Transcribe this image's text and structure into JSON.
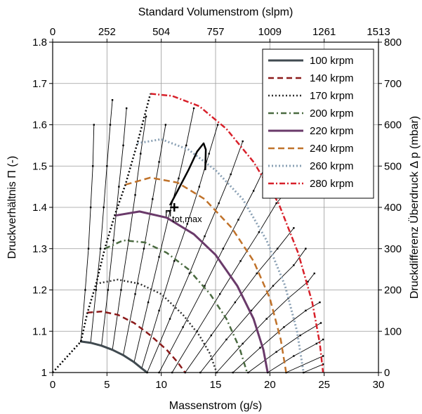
{
  "chart_data": {
    "type": "line",
    "xlabel": "Massenstrom (g/s)",
    "ylabel": "Druckverhältnis Π (-)",
    "x2label": "Standard Volumenstrom (slpm)",
    "y2label": "Druckdifferenz Überdruck Δ p (mbar)",
    "xlim": [
      0,
      30
    ],
    "ylim": [
      1.0,
      1.8
    ],
    "x_ticks": [
      "0",
      "5",
      "10",
      "15",
      "20",
      "25",
      "30"
    ],
    "y_ticks": [
      "1",
      "1.1",
      "1.2",
      "1.3",
      "1.4",
      "1.5",
      "1.6",
      "1.7",
      "1.8"
    ],
    "x2_ticks": [
      "0",
      "252",
      "504",
      "757",
      "1009",
      "1261",
      "1513"
    ],
    "y2_ticks": [
      "0",
      "100",
      "200",
      "300",
      "400",
      "500",
      "600",
      "700",
      "800"
    ],
    "grid": true,
    "legend_position": "top-right",
    "annotation": {
      "text_main": "Π",
      "text_sub": "tot,max",
      "x": 11.2,
      "y": 1.4
    },
    "series": [
      {
        "name": "100 krpm",
        "color": "#404a50",
        "dash": "solid",
        "width": 3,
        "x": [
          2.6,
          3.5,
          4.5,
          5.5,
          6.5,
          7.5,
          8.2,
          8.7
        ],
        "y": [
          1.075,
          1.072,
          1.065,
          1.055,
          1.042,
          1.025,
          1.01,
          1.0
        ]
      },
      {
        "name": "140 krpm",
        "color": "#8b1a1a",
        "dash": "8,5",
        "width": 2.5,
        "x": [
          3.2,
          4.5,
          6.0,
          7.5,
          9.0,
          10.5,
          11.5,
          12.2
        ],
        "y": [
          1.145,
          1.148,
          1.14,
          1.12,
          1.09,
          1.055,
          1.025,
          1.0
        ]
      },
      {
        "name": "170 krpm",
        "color": "#303030",
        "dash": "2,3",
        "width": 2.5,
        "x": [
          4.0,
          6.0,
          8.0,
          10.0,
          12.0,
          13.5,
          14.5,
          15.1
        ],
        "y": [
          1.215,
          1.225,
          1.215,
          1.19,
          1.14,
          1.09,
          1.045,
          1.0
        ]
      },
      {
        "name": "200 krpm",
        "color": "#4a6a40",
        "dash": "8,4,2,4",
        "width": 2.5,
        "x": [
          4.8,
          6.5,
          8.5,
          10.5,
          12.5,
          14.5,
          16.0,
          17.2,
          17.9
        ],
        "y": [
          1.3,
          1.32,
          1.315,
          1.29,
          1.25,
          1.19,
          1.13,
          1.06,
          1.0
        ]
      },
      {
        "name": "220 krpm",
        "color": "#6a3a6a",
        "dash": "solid",
        "width": 3,
        "x": [
          5.7,
          8.0,
          10.5,
          13.0,
          15.0,
          17.0,
          18.5,
          19.4,
          19.8
        ],
        "y": [
          1.38,
          1.39,
          1.375,
          1.335,
          1.285,
          1.21,
          1.13,
          1.055,
          1.0
        ]
      },
      {
        "name": "240 krpm",
        "color": "#c0722a",
        "dash": "9,5",
        "width": 2.5,
        "x": [
          6.7,
          9.0,
          11.5,
          14.0,
          16.5,
          18.5,
          20.0,
          21.0,
          21.5
        ],
        "y": [
          1.455,
          1.472,
          1.46,
          1.42,
          1.35,
          1.27,
          1.18,
          1.08,
          1.0
        ]
      },
      {
        "name": "260 krpm",
        "color": "#8aa0b4",
        "dash": "2,3",
        "width": 3,
        "x": [
          7.8,
          10.0,
          12.5,
          15.0,
          17.5,
          19.7,
          21.4,
          22.5,
          23.1
        ],
        "y": [
          1.555,
          1.565,
          1.54,
          1.49,
          1.42,
          1.32,
          1.21,
          1.1,
          1.0
        ]
      },
      {
        "name": "280 krpm",
        "color": "#d8202a",
        "dash": "8,3,2,3",
        "width": 2.5,
        "x": [
          9.0,
          11.0,
          13.5,
          16.0,
          18.5,
          20.8,
          22.6,
          23.9,
          24.6,
          24.9
        ],
        "y": [
          1.675,
          1.67,
          1.645,
          1.59,
          1.51,
          1.41,
          1.29,
          1.17,
          1.07,
          1.0
        ]
      },
      {
        "name": "",
        "color": "#000000",
        "dash": "2,3",
        "width": 2.5,
        "x": [
          0,
          2.6,
          3.2,
          4.0,
          4.8,
          5.7,
          6.7,
          7.8,
          9.0
        ],
        "y": [
          1.0,
          1.075,
          1.145,
          1.215,
          1.3,
          1.38,
          1.455,
          1.555,
          1.675
        ]
      },
      {
        "name": "",
        "color": "#000000",
        "dash": "solid",
        "width": 2.5,
        "x": [
          10.8,
          11.5,
          12.5,
          13.3,
          13.9,
          14.1,
          14.05
        ],
        "y": [
          1.405,
          1.44,
          1.49,
          1.535,
          1.555,
          1.54,
          1.49
        ]
      }
    ],
    "speed_lines": [
      [
        [
          2.6,
          1.075
        ],
        [
          3.0,
          1.2
        ],
        [
          3.3,
          1.3
        ],
        [
          3.5,
          1.4
        ],
        [
          3.7,
          1.5
        ],
        [
          3.8,
          1.6
        ]
      ],
      [
        [
          3.5,
          1.072
        ],
        [
          4.0,
          1.2
        ],
        [
          4.4,
          1.3
        ],
        [
          4.7,
          1.4
        ],
        [
          5.0,
          1.5
        ],
        [
          5.3,
          1.6
        ],
        [
          5.5,
          1.66
        ]
      ],
      [
        [
          4.5,
          1.065
        ],
        [
          5.1,
          1.2
        ],
        [
          5.6,
          1.32
        ],
        [
          6.1,
          1.45
        ],
        [
          6.5,
          1.55
        ],
        [
          6.8,
          1.64
        ]
      ],
      [
        [
          5.5,
          1.055
        ],
        [
          6.3,
          1.2
        ],
        [
          7.0,
          1.32
        ],
        [
          7.6,
          1.43
        ],
        [
          8.1,
          1.53
        ],
        [
          8.6,
          1.62
        ]
      ],
      [
        [
          6.5,
          1.042
        ],
        [
          7.6,
          1.19
        ],
        [
          8.4,
          1.3
        ],
        [
          9.2,
          1.42
        ],
        [
          9.8,
          1.51
        ],
        [
          10.4,
          1.6
        ]
      ],
      [
        [
          7.5,
          1.025
        ],
        [
          8.8,
          1.17
        ],
        [
          9.8,
          1.28
        ],
        [
          10.8,
          1.39
        ],
        [
          11.6,
          1.47
        ],
        [
          12.3,
          1.55
        ],
        [
          13.0,
          1.64
        ]
      ],
      [
        [
          8.2,
          1.01
        ],
        [
          9.8,
          1.15
        ],
        [
          11.2,
          1.27
        ],
        [
          12.4,
          1.36
        ],
        [
          13.5,
          1.45
        ],
        [
          14.4,
          1.53
        ],
        [
          15.2,
          1.6
        ]
      ],
      [
        [
          8.7,
          1.0
        ],
        [
          10.8,
          1.13
        ],
        [
          12.6,
          1.24
        ],
        [
          14.0,
          1.33
        ],
        [
          15.3,
          1.41
        ],
        [
          16.4,
          1.48
        ],
        [
          17.5,
          1.56
        ]
      ],
      [
        [
          9.8,
          1.0
        ],
        [
          12.0,
          1.11
        ],
        [
          14.0,
          1.21
        ],
        [
          15.7,
          1.3
        ],
        [
          17.1,
          1.37
        ],
        [
          18.5,
          1.44
        ],
        [
          19.6,
          1.5
        ]
      ],
      [
        [
          11.0,
          1.0
        ],
        [
          13.3,
          1.1
        ],
        [
          15.4,
          1.19
        ],
        [
          17.3,
          1.27
        ],
        [
          19.0,
          1.34
        ],
        [
          20.6,
          1.41
        ],
        [
          21.6,
          1.44
        ]
      ],
      [
        [
          12.2,
          1.0
        ],
        [
          14.6,
          1.09
        ],
        [
          16.8,
          1.17
        ],
        [
          18.8,
          1.24
        ],
        [
          20.7,
          1.3
        ],
        [
          22.2,
          1.35
        ]
      ],
      [
        [
          13.6,
          1.0
        ],
        [
          16.0,
          1.08
        ],
        [
          18.3,
          1.15
        ],
        [
          20.3,
          1.21
        ],
        [
          22.2,
          1.26
        ],
        [
          23.3,
          1.3
        ]
      ],
      [
        [
          15.1,
          1.0
        ],
        [
          17.5,
          1.07
        ],
        [
          19.7,
          1.13
        ],
        [
          21.7,
          1.18
        ],
        [
          23.5,
          1.22
        ],
        [
          24.1,
          1.24
        ]
      ],
      [
        [
          16.6,
          1.0
        ],
        [
          19.1,
          1.06
        ],
        [
          21.3,
          1.11
        ],
        [
          23.3,
          1.15
        ],
        [
          24.6,
          1.17
        ]
      ],
      [
        [
          18.0,
          1.0
        ],
        [
          20.6,
          1.05
        ],
        [
          22.8,
          1.09
        ],
        [
          24.7,
          1.12
        ]
      ],
      [
        [
          19.8,
          1.0
        ],
        [
          22.2,
          1.04
        ],
        [
          24.3,
          1.07
        ],
        [
          24.9,
          1.08
        ]
      ],
      [
        [
          21.5,
          1.0
        ],
        [
          24.9,
          1.04
        ]
      ],
      [
        [
          23.1,
          1.0
        ],
        [
          24.9,
          1.02
        ]
      ]
    ]
  }
}
